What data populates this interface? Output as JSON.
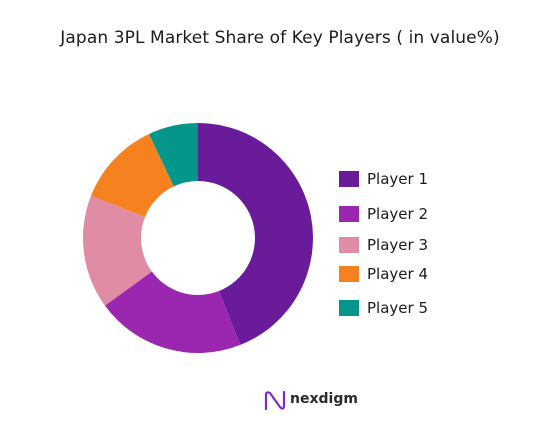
{
  "chart_data": {
    "type": "pie",
    "variant": "donut",
    "title": "Japan 3PL Market Share of Key Players ( in value%)",
    "categories": [
      "Player 1",
      "Player 2",
      "Player 3",
      "Player 4",
      "Player 5"
    ],
    "values": [
      44,
      21,
      16,
      12,
      7
    ],
    "colors": [
      "#6a1b9a",
      "#9b27b0",
      "#e08ca4",
      "#f5821f",
      "#05968b"
    ],
    "legend_position": "right"
  },
  "brand": {
    "name": "nexdigm",
    "icon": "nexdigm-logo-icon",
    "color": "#7b2cbf"
  }
}
